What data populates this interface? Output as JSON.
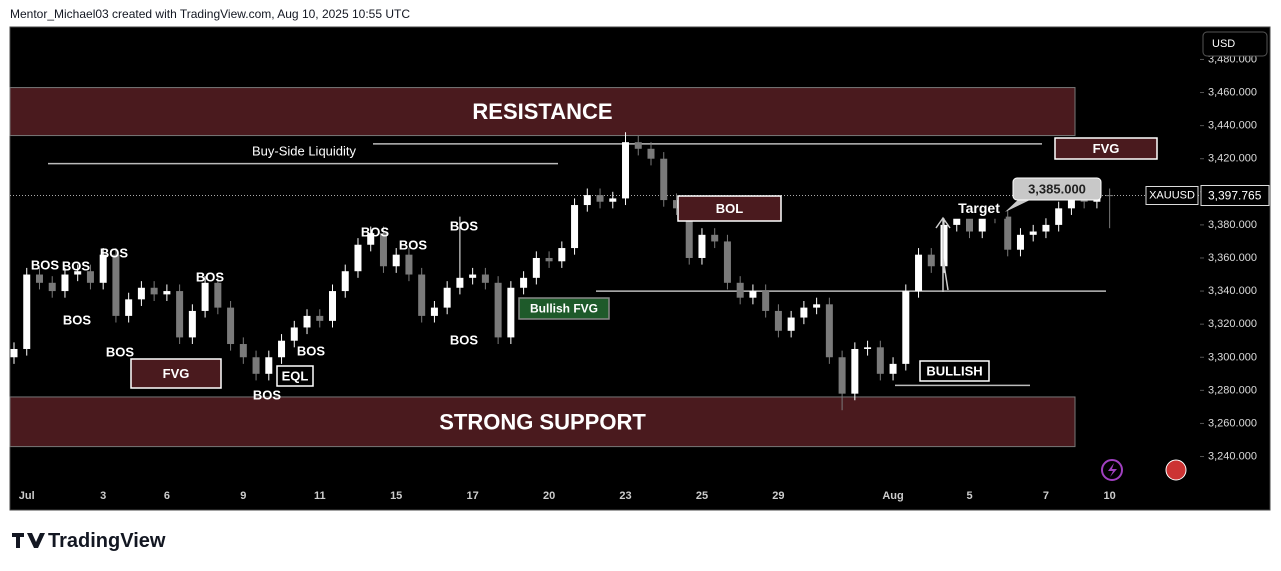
{
  "header": "Mentor_Michael03 created with TradingView.com, Aug 10, 2025 10:55 UTC",
  "brand": "TradingView",
  "chart_data": {
    "type": "candlestick",
    "symbol": "XAUUSD",
    "currency": "USD",
    "categories": [
      null,
      "Jul",
      null,
      null,
      null,
      null,
      null,
      "3",
      null,
      null,
      null,
      null,
      "6",
      null,
      null,
      null,
      null,
      null,
      "9",
      null,
      null,
      null,
      null,
      null,
      "11",
      null,
      null,
      null,
      null,
      null,
      "15",
      null,
      null,
      null,
      null,
      null,
      "17",
      null,
      null,
      null,
      null,
      null,
      "20",
      null,
      null,
      null,
      null,
      null,
      "23",
      null,
      null,
      null,
      null,
      null,
      "25",
      null,
      null,
      null,
      null,
      null,
      "29",
      null,
      null,
      null,
      null,
      null,
      null,
      null,
      null,
      "Aug",
      null,
      null,
      null,
      null,
      null,
      "5",
      null,
      null,
      null,
      null,
      null,
      "7",
      null,
      null,
      null,
      null,
      "10"
    ],
    "open": [
      3300,
      3305,
      3350,
      3345,
      3340,
      3350,
      3352,
      3345,
      3362,
      3325,
      3335,
      3342,
      3338,
      3340,
      3312,
      3328,
      3345,
      3330,
      3308,
      3300,
      3290,
      3300,
      3310,
      3318,
      3325,
      3322,
      3340,
      3352,
      3368,
      3375,
      3355,
      3362,
      3350,
      3325,
      3330,
      3342,
      3348,
      3350,
      3345,
      3312,
      3342,
      3348,
      3360,
      3358,
      3366,
      3392,
      3398,
      3394,
      3396,
      3430,
      3426,
      3420,
      3395,
      3390,
      3360,
      3374,
      3370,
      3345,
      3336,
      3340,
      3328,
      3316,
      3324,
      3330,
      3332,
      3300,
      3278,
      3305,
      3306,
      3290,
      3296,
      3340,
      3362,
      3355,
      3380,
      3386,
      3376,
      3386,
      3385,
      3365,
      3374,
      3376,
      3380,
      3390,
      3400,
      3394,
      3398
    ],
    "high": [
      3309,
      3354,
      3354,
      3349,
      3354,
      3356,
      3356,
      3366,
      3366,
      3339,
      3346,
      3346,
      3344,
      3344,
      3332,
      3349,
      3349,
      3334,
      3312,
      3304,
      3304,
      3314,
      3322,
      3329,
      3329,
      3344,
      3356,
      3372,
      3379,
      3379,
      3366,
      3366,
      3354,
      3334,
      3346,
      3385,
      3354,
      3354,
      3349,
      3346,
      3352,
      3364,
      3364,
      3370,
      3396,
      3402,
      3402,
      3400,
      3436,
      3434,
      3430,
      3424,
      3399,
      3394,
      3378,
      3378,
      3374,
      3349,
      3344,
      3344,
      3332,
      3328,
      3334,
      3336,
      3336,
      3304,
      3309,
      3310,
      3310,
      3300,
      3344,
      3366,
      3366,
      3384,
      3390,
      3390,
      3390,
      3390,
      3389,
      3378,
      3380,
      3384,
      3394,
      3404,
      3404,
      3405,
      3402
    ],
    "low": [
      3296,
      3301,
      3341,
      3336,
      3336,
      3346,
      3341,
      3341,
      3321,
      3321,
      3331,
      3334,
      3334,
      3308,
      3308,
      3324,
      3326,
      3304,
      3296,
      3286,
      3286,
      3296,
      3306,
      3314,
      3318,
      3318,
      3336,
      3348,
      3364,
      3351,
      3351,
      3346,
      3321,
      3321,
      3326,
      3338,
      3344,
      3341,
      3308,
      3308,
      3338,
      3344,
      3354,
      3354,
      3362,
      3388,
      3390,
      3390,
      3392,
      3422,
      3416,
      3391,
      3386,
      3356,
      3356,
      3366,
      3341,
      3332,
      3332,
      3324,
      3312,
      3312,
      3320,
      3326,
      3296,
      3268,
      3274,
      3301,
      3286,
      3286,
      3292,
      3336,
      3351,
      3351,
      3376,
      3372,
      3372,
      3381,
      3361,
      3361,
      3370,
      3372,
      3376,
      3386,
      3390,
      3390,
      3378
    ],
    "close": [
      3305,
      3350,
      3345,
      3340,
      3350,
      3352,
      3345,
      3362,
      3325,
      3335,
      3342,
      3338,
      3340,
      3312,
      3328,
      3345,
      3330,
      3308,
      3300,
      3290,
      3300,
      3310,
      3318,
      3325,
      3322,
      3340,
      3352,
      3368,
      3375,
      3355,
      3362,
      3350,
      3325,
      3330,
      3342,
      3348,
      3350,
      3345,
      3312,
      3342,
      3348,
      3360,
      3358,
      3366,
      3392,
      3398,
      3394,
      3396,
      3430,
      3426,
      3420,
      3395,
      3390,
      3360,
      3374,
      3370,
      3345,
      3336,
      3340,
      3328,
      3316,
      3324,
      3330,
      3332,
      3300,
      3278,
      3305,
      3306,
      3290,
      3296,
      3340,
      3362,
      3355,
      3380,
      3386,
      3376,
      3386,
      3385,
      3365,
      3374,
      3376,
      3380,
      3390,
      3400,
      3394,
      3398,
      3397.765
    ],
    "up_color": "#ffffff",
    "down_color": "#7a7a7a",
    "last_price": {
      "value": 3397.765,
      "label": "3,397.765"
    },
    "ylim": [
      3224,
      3499
    ],
    "yticks": [
      {
        "value": 3240,
        "label": "3,240.000"
      },
      {
        "value": 3260,
        "label": "3,260.000"
      },
      {
        "value": 3280,
        "label": "3,280.000"
      },
      {
        "value": 3300,
        "label": "3,300.000"
      },
      {
        "value": 3320,
        "label": "3,320.000"
      },
      {
        "value": 3340,
        "label": "3,340.000"
      },
      {
        "value": 3360,
        "label": "3,360.000"
      },
      {
        "value": 3380,
        "label": "3,380.000"
      },
      {
        "value": 3400,
        "label": "3,400.000"
      },
      {
        "value": 3420,
        "label": "3,420.000"
      },
      {
        "value": 3440,
        "label": "3,440.000"
      },
      {
        "value": 3460,
        "label": "3,460.000"
      },
      {
        "value": 3480,
        "label": "3,480.000"
      }
    ],
    "resistance_zone": [
      3434,
      3463
    ],
    "support_zone": [
      3246,
      3276
    ],
    "levels": [
      3429,
      3417,
      3340,
      3283
    ],
    "annotations": {
      "resistance": "RESISTANCE",
      "support": "STRONG SUPPORT",
      "liquidity": "Buy-Side Liquidity",
      "bos": [
        "BOS",
        "BOS",
        "BOS",
        "BOS",
        "BOS",
        "BOS",
        "BOS",
        "BOS",
        "BOS",
        "BOS",
        "BOS",
        "BOS"
      ],
      "fvg": [
        "FVG",
        "FVG"
      ],
      "bullish_fvg": "Bullish FVG",
      "eql": "EQL",
      "bol": "BOL",
      "bullish": "BULLISH",
      "target": "Target",
      "target_price": {
        "value": 3385,
        "label": "3,385.000"
      }
    }
  }
}
